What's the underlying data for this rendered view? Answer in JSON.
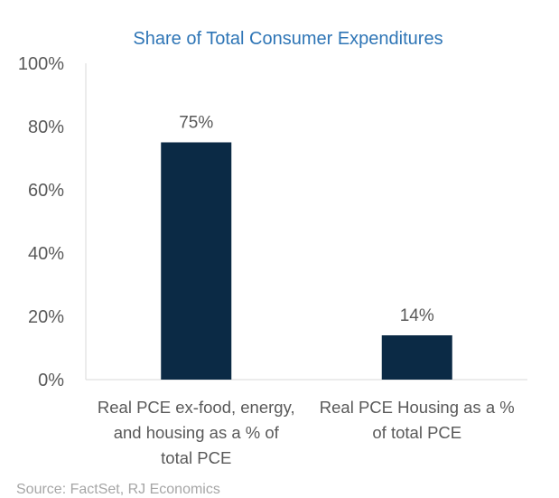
{
  "chart_data": {
    "type": "bar",
    "title": "Share of Total Consumer Expenditures",
    "categories": [
      [
        "Real PCE ex-food, energy,",
        "and housing as a % of",
        "total PCE"
      ],
      [
        "Real PCE Housing as a %",
        "of total PCE"
      ]
    ],
    "values": [
      75,
      14
    ],
    "data_labels": [
      "75%",
      "14%"
    ],
    "ylim": [
      0,
      100
    ],
    "yticks": [
      0,
      20,
      40,
      60,
      80,
      100
    ],
    "ytick_labels": [
      "0%",
      "20%",
      "40%",
      "60%",
      "80%",
      "100%"
    ],
    "grid": false,
    "legend": "none",
    "bar_color": "#0b2a45",
    "source": "Source: FactSet, RJ Economics"
  }
}
